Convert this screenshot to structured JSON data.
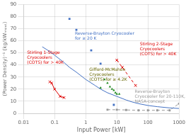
{
  "chart_data": {
    "type": "scatter",
    "xlabel": "Input Power [kW]",
    "ylabel": "(Power Density)⁻¹ (kg/kWₙₙₚᵤₜ)",
    "log": "x",
    "xlim": [
      0.01,
      1000
    ],
    "ylim": [
      0,
      90
    ],
    "xticks": [
      0.01,
      0.1,
      1,
      10,
      100,
      1000
    ],
    "yticks": [
      0,
      10,
      20,
      30,
      40,
      50,
      60,
      70,
      80,
      90
    ],
    "grid": true,
    "series": [
      {
        "type": "line",
        "marker": "none",
        "line_style": "solid",
        "color": "#4472C4",
        "x": [
          0.04,
          0.07,
          0.1,
          0.2,
          0.3,
          0.5,
          1,
          2,
          3,
          5,
          10,
          20,
          30,
          50,
          100,
          200,
          500,
          1000
        ],
        "values": [
          55,
          51,
          48,
          42,
          38,
          34,
          28,
          23,
          20,
          17,
          14,
          11,
          9.5,
          8,
          6.5,
          5.5,
          4.5,
          4
        ]
      },
      {
        "type": "scatter",
        "marker": "square",
        "color": "#4472C4",
        "x": [
          0.3,
          0.5,
          1.5,
          3,
          8
        ],
        "values": [
          78,
          69,
          52,
          41,
          7
        ]
      },
      {
        "type": "scatter",
        "marker": "triangle",
        "color": "#228B22",
        "x": [
          3,
          4,
          5,
          6,
          7,
          8,
          9,
          10,
          12
        ],
        "values": [
          21,
          28,
          25,
          22,
          20,
          19,
          17,
          16,
          16
        ]
      },
      {
        "type": "line",
        "marker": "x",
        "line_style": "solid",
        "color": "#DD0000",
        "x": [
          0.07,
          0.08,
          0.1,
          0.15,
          0.2
        ],
        "values": [
          26,
          25,
          20,
          14,
          13
        ]
      },
      {
        "type": "line",
        "marker": "x",
        "line_style": "dashed",
        "color": "#DD0000",
        "x": [
          10,
          15,
          40
        ],
        "values": [
          44,
          38,
          23
        ]
      },
      {
        "type": "line",
        "marker": "square",
        "line_style": "dashed",
        "color": "#999999",
        "x": [
          5,
          10,
          20,
          50,
          100,
          200,
          500,
          1000
        ],
        "values": [
          3.0,
          3.0,
          2.8,
          2.5,
          2.5,
          2.5,
          2.5,
          8
        ]
      }
    ],
    "annotations": [
      {
        "text": "Reverse-Brayton Cryocooler\nfor ≥ 20 K",
        "x": 0.45,
        "y": 64,
        "color": "#4472C4"
      },
      {
        "text": "Gifford-McMahon\nCryocoolers\n(COTS) for ≥ 4.2K",
        "x": 1.3,
        "y": 32,
        "color": "#666600"
      },
      {
        "text": "Stirling 1-Stage\nCryocoolers\n(COTS) for > 40K",
        "x": 0.013,
        "y": 46,
        "color": "#DD0000"
      },
      {
        "text": "Stirling 2-Stage\nCryocoolers\n(COTS) for > 40K",
        "x": 55,
        "y": 53,
        "color": "#DD0000"
      },
      {
        "text": "Reverse-Brayton\nCryocooler for 20-110K,\nNASA-concept",
        "x": 110,
        "y": 14,
        "color": "#999999"
      }
    ]
  }
}
